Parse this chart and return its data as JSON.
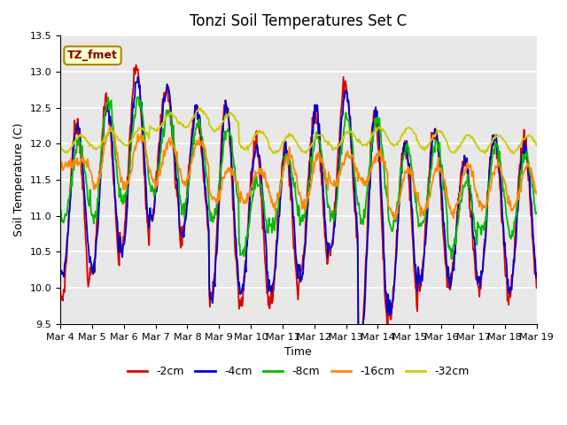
{
  "title": "Tonzi Soil Temperatures Set C",
  "xlabel": "Time",
  "ylabel": "Soil Temperature (C)",
  "ylim": [
    9.5,
    13.5
  ],
  "annotation": "TZ_fmet",
  "series_colors": [
    "#dd0000",
    "#0000cc",
    "#00bb00",
    "#ff8800",
    "#cccc00"
  ],
  "series_labels": [
    "-2cm",
    "-4cm",
    "-8cm",
    "-16cm",
    "-32cm"
  ],
  "line_width": 1.3,
  "bg_color": "#e8e8e8",
  "xtick_labels": [
    "Mar 4",
    "Mar 5",
    "Mar 6",
    "Mar 7",
    "Mar 8",
    "Mar 9",
    "Mar 10",
    "Mar 11",
    "Mar 12",
    "Mar 13",
    "Mar 14",
    "Mar 15",
    "Mar 16",
    "Mar 17",
    "Mar 18",
    "Mar 19"
  ],
  "n_days": 16,
  "points_per_day": 48,
  "ytick_step": 0.5,
  "title_fontsize": 12,
  "axis_label_fontsize": 9,
  "tick_fontsize": 8,
  "legend_fontsize": 9,
  "red2cm_peaks": [
    12.3,
    12.6,
    13.05,
    12.75,
    12.45,
    12.5,
    12.0,
    11.95,
    12.45,
    12.85,
    12.45,
    12.0,
    12.2,
    11.75,
    12.1,
    12.05
  ],
  "red2cm_troughs": [
    9.85,
    10.2,
    10.55,
    11.0,
    10.7,
    9.85,
    9.75,
    9.8,
    10.2,
    10.5,
    9.2,
    9.6,
    10.0,
    10.05,
    10.0,
    9.9
  ],
  "blue4cm_peaks": [
    12.25,
    12.5,
    12.9,
    12.75,
    12.45,
    12.5,
    12.0,
    11.9,
    12.45,
    12.7,
    12.45,
    12.0,
    12.2,
    11.75,
    12.1,
    12.0
  ],
  "blue4cm_troughs": [
    10.2,
    10.25,
    10.55,
    11.0,
    10.7,
    9.85,
    9.95,
    9.95,
    10.2,
    10.55,
    9.25,
    9.7,
    10.1,
    10.1,
    10.1,
    9.95
  ],
  "green8cm_peaks": [
    12.0,
    12.6,
    12.65,
    12.45,
    12.3,
    12.2,
    11.5,
    11.85,
    12.1,
    12.35,
    12.35,
    11.95,
    12.0,
    11.5,
    11.95,
    11.85
  ],
  "green8cm_troughs": [
    10.95,
    10.95,
    11.2,
    11.3,
    11.1,
    10.95,
    10.5,
    10.85,
    10.95,
    10.95,
    10.95,
    10.8,
    10.85,
    10.5,
    10.75,
    10.75
  ],
  "orange16cm_peaks": [
    11.75,
    12.2,
    12.1,
    12.05,
    12.05,
    11.65,
    11.65,
    11.85,
    11.85,
    11.85,
    11.85,
    11.65,
    11.7,
    11.7,
    11.7,
    11.7
  ],
  "orange16cm_troughs": [
    11.7,
    11.4,
    11.4,
    11.45,
    11.45,
    11.2,
    11.2,
    11.15,
    11.15,
    11.45,
    11.45,
    11.0,
    11.05,
    11.05,
    11.1,
    11.1
  ],
  "yellow32cm_base": [
    12.0,
    12.05,
    12.1,
    12.3,
    12.35,
    12.3,
    12.05,
    12.0,
    12.0,
    12.05,
    12.1,
    12.1,
    12.05,
    12.0,
    12.0,
    12.0
  ]
}
